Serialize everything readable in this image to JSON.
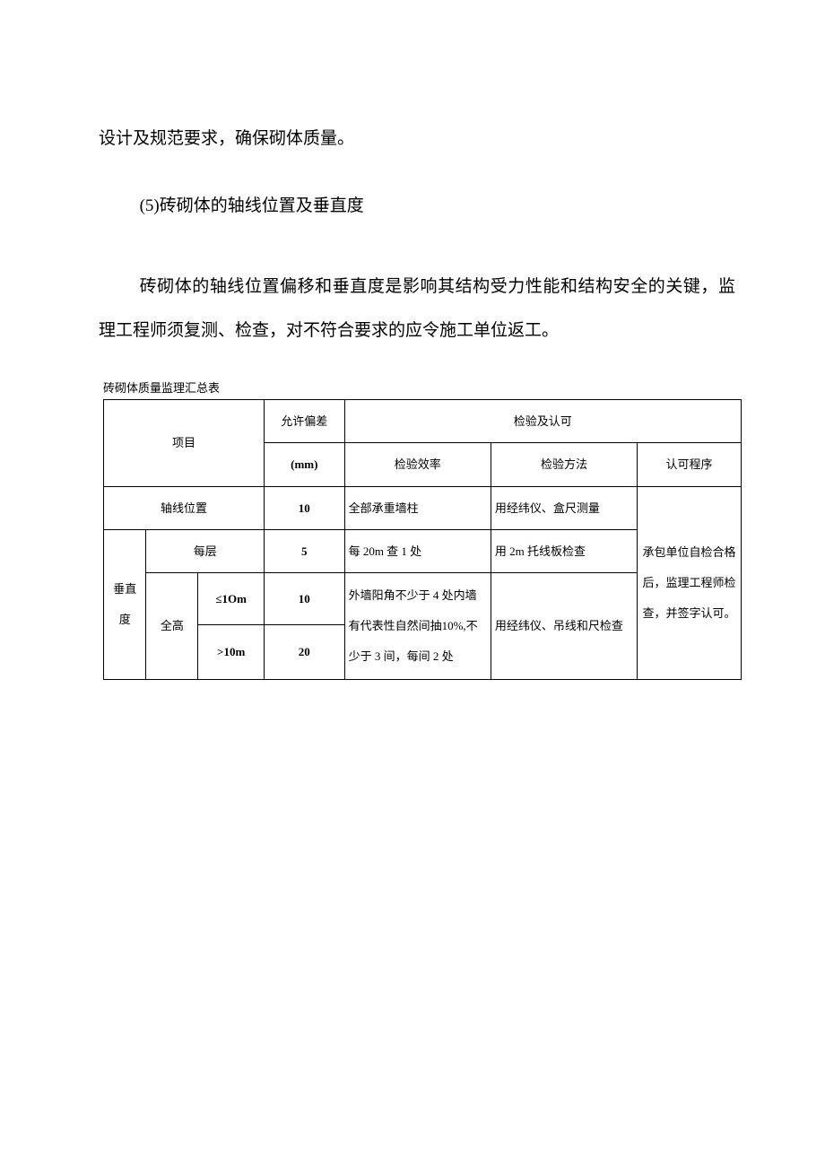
{
  "para1": "设计及规范要求，确保砌体质量。",
  "heading5": "(5)砖砌体的轴线位置及垂直度",
  "para2": "砖砌体的轴线位置偏移和垂直度是影响其结构受力性能和结构安全的关键，监理工程师须复测、检查，对不符合要求的应令施工单位返工。",
  "table": {
    "caption": "砖砌体质量监理汇总表",
    "header": {
      "project": "项目",
      "deviation": "允许偏差",
      "deviation_unit": "(mm)",
      "inspect": "检验及认可",
      "inspect_rate": "检验效率",
      "inspect_method": "检验方法",
      "approve": "认可程序"
    },
    "rows": {
      "axis": {
        "label": "轴线位置",
        "deviation": "10",
        "rate": "全部承重墙柱",
        "method": "用经纬仪、盒尺测量"
      },
      "vertical": {
        "label": "垂直度",
        "floor": {
          "label": "每层",
          "deviation": "5",
          "rate": "每 20m 查 1 处",
          "method": "用 2m 托线板检查"
        },
        "full": {
          "label": "全高",
          "le10m": {
            "label": "≤1Om",
            "deviation": "10"
          },
          "gt10m": {
            "label": ">10m",
            "deviation": "20"
          },
          "rate": "外墙阳角不少于 4 处内墙有代表性自然间抽10%,不少于 3 间，每间 2 处",
          "method": "用经纬仪、吊线和尺检查"
        }
      },
      "approve": "承包单位自检合格后，监理工程师检查，并签字认可。"
    }
  }
}
